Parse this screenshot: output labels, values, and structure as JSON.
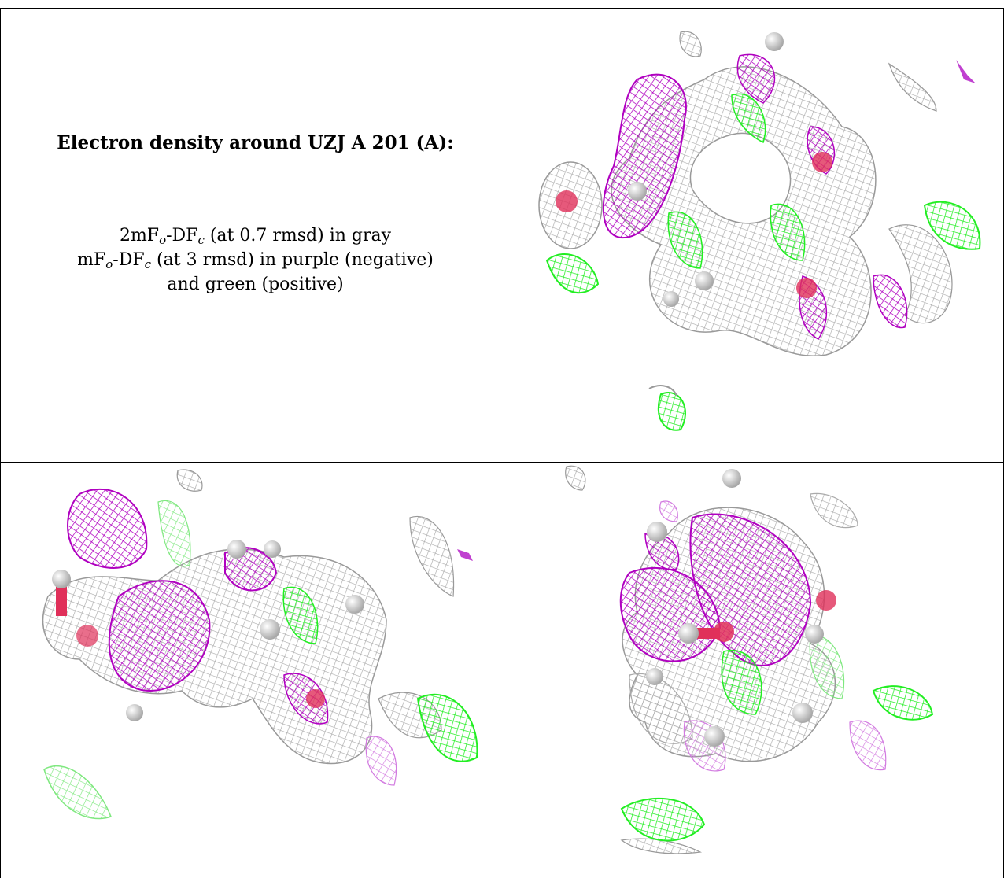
{
  "caption": {
    "title": "Electron density around UZJ A 201 (A):",
    "line1": {
      "prefix": "2mF",
      "sub1": "o",
      "mid": "-DF",
      "sub2": "c",
      "suffix": " (at 0.7 rmsd) in gray"
    },
    "line2": {
      "prefix": "mF",
      "sub1": "o",
      "mid": "-DF",
      "sub2": "c",
      "suffix": " (at 3 rmsd) in purple (negative)"
    },
    "line3": "and green (positive)"
  },
  "colors": {
    "gray_mesh": "#b4b4b4",
    "purple_mesh": "#b000c0",
    "green_mesh": "#22ee22",
    "oxygen": "#e0305a",
    "hydrogen": "#e6e6e6"
  },
  "panels": [
    {
      "name": "density-view-top-right",
      "description_icon": "mesh-view"
    },
    {
      "name": "density-view-bottom-left",
      "description_icon": "mesh-view"
    },
    {
      "name": "density-view-bottom-right",
      "description_icon": "mesh-view"
    }
  ]
}
